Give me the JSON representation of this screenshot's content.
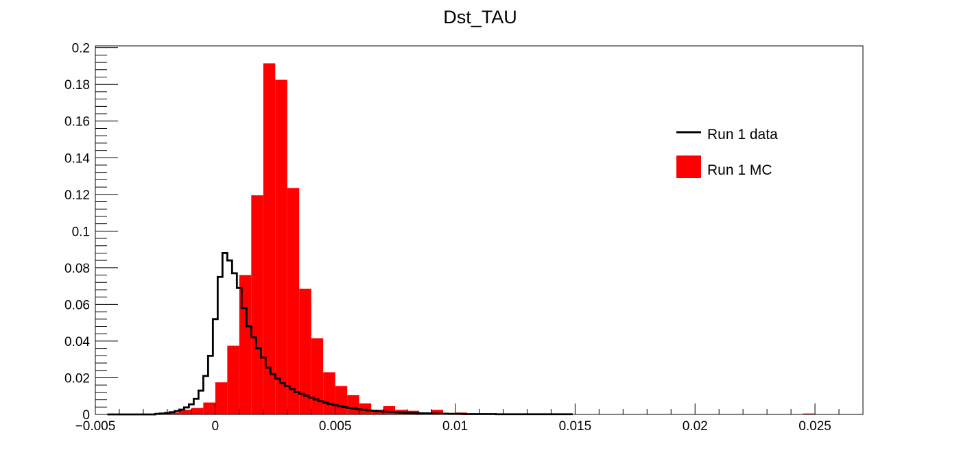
{
  "chart_data": {
    "type": "histogram",
    "title": "Dst_TAU",
    "xlabel": "",
    "ylabel": "",
    "xlim": [
      -0.005,
      0.027
    ],
    "ylim": [
      0,
      0.201
    ],
    "x_ticks": [
      -0.005,
      0,
      0.005,
      0.01,
      0.015,
      0.02,
      0.025
    ],
    "x_tick_labels": [
      "−0.005",
      "0",
      "0.005",
      "0.01",
      "0.015",
      "0.02",
      "0.025"
    ],
    "y_ticks": [
      0,
      0.02,
      0.04,
      0.06,
      0.08,
      0.1,
      0.12,
      0.14,
      0.16,
      0.18,
      0.2
    ],
    "y_tick_labels": [
      "0",
      "0.02",
      "0.04",
      "0.06",
      "0.08",
      "0.1",
      "0.12",
      "0.14",
      "0.16",
      "0.18",
      "0.2"
    ],
    "grid": false,
    "legend_position": "top-right",
    "series": [
      {
        "name": "Run 1 data",
        "style": "step-line",
        "color": "#000000",
        "bin_start": -0.0045,
        "bin_width": 0.0002,
        "values": [
          0,
          0,
          0,
          0,
          0,
          0,
          0,
          0,
          0,
          0,
          0.0003,
          0.0005,
          0.0008,
          0.0012,
          0.0018,
          0.0026,
          0.0038,
          0.0055,
          0.0085,
          0.013,
          0.021,
          0.032,
          0.052,
          0.075,
          0.088,
          0.084,
          0.077,
          0.069,
          0.058,
          0.048,
          0.042,
          0.036,
          0.031,
          0.0255,
          0.022,
          0.0195,
          0.017,
          0.0155,
          0.0138,
          0.0122,
          0.0112,
          0.0102,
          0.0092,
          0.0082,
          0.0072,
          0.0064,
          0.0057,
          0.005,
          0.0045,
          0.004,
          0.0035,
          0.0032,
          0.0028,
          0.0025,
          0.0022,
          0.002,
          0.0018,
          0.0016,
          0.0014,
          0.0013,
          0.0011,
          0.001,
          0.0009,
          0.0008,
          0.0007,
          0.0006,
          0.0006,
          0.0005,
          0.0005,
          0.0004,
          0.0004,
          0.0003,
          0.0003,
          0.0003,
          0.0002,
          0.0002,
          0.0002,
          0.0002,
          0.0002,
          0.0002,
          0.0002,
          0.0001,
          0.0001,
          0.0001,
          0.0001,
          0.0001,
          0.0001,
          0.0001,
          0.0001,
          0.0001,
          0.0001,
          0.0001,
          0.0001,
          0.0001,
          0.0001,
          0.0001,
          0.0001
        ]
      },
      {
        "name": "Run 1 MC",
        "style": "filled-bars",
        "color": "#ff0000",
        "bin_start": -0.0045,
        "bin_width": 0.0005,
        "values": [
          0,
          0,
          0,
          0,
          0.0005,
          0.001,
          0.0025,
          0.0035,
          0.0065,
          0.0175,
          0.0375,
          0.076,
          0.1195,
          0.1915,
          0.1825,
          0.1235,
          0.0685,
          0.0415,
          0.023,
          0.0155,
          0.0105,
          0.006,
          0.0025,
          0.0045,
          0.0025,
          0.002,
          0.001,
          0.0025,
          0.0005,
          0.001,
          0.0005,
          0.0005,
          0.0005,
          0,
          0.0005,
          0,
          0,
          0,
          0,
          0,
          0,
          0,
          0,
          0,
          0,
          0,
          0,
          0,
          0,
          0,
          0,
          0,
          0,
          0,
          0,
          0,
          0,
          0,
          0.0005,
          0,
          0,
          0,
          0,
          0,
          0,
          0,
          0,
          0,
          0,
          0,
          0,
          0,
          0,
          0,
          0,
          0,
          0,
          0,
          0,
          0,
          0,
          0,
          0,
          0,
          0,
          0,
          0,
          0,
          0,
          0,
          0,
          0,
          0,
          0,
          0,
          0,
          0,
          0,
          0,
          0,
          0,
          0,
          0,
          0,
          0,
          0,
          0,
          0,
          0,
          0,
          0,
          0,
          0,
          0,
          0,
          0.0005
        ]
      }
    ]
  }
}
